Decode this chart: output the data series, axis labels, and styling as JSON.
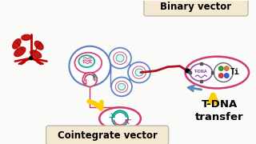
{
  "bg_color": "#fafaf8",
  "binary_vector_label": "Binary vector",
  "cointegrate_label": "Cointegrate vector",
  "tdna_label": "T-DNA\ntransfer",
  "ti_label": "Ti",
  "plant_color": "#bb0000",
  "pink_color": "#cc3366",
  "blue_color": "#5577bb",
  "teal_color": "#009988",
  "red_dark": "#aa2222",
  "arrow_yellow": "#ffcc00",
  "arrow_blue": "#5588bb",
  "box_bg": "#f5e8d0",
  "box_edge": "#ccbbaa",
  "label_fontsize": 8.5,
  "tdna_fontsize": 9.5
}
